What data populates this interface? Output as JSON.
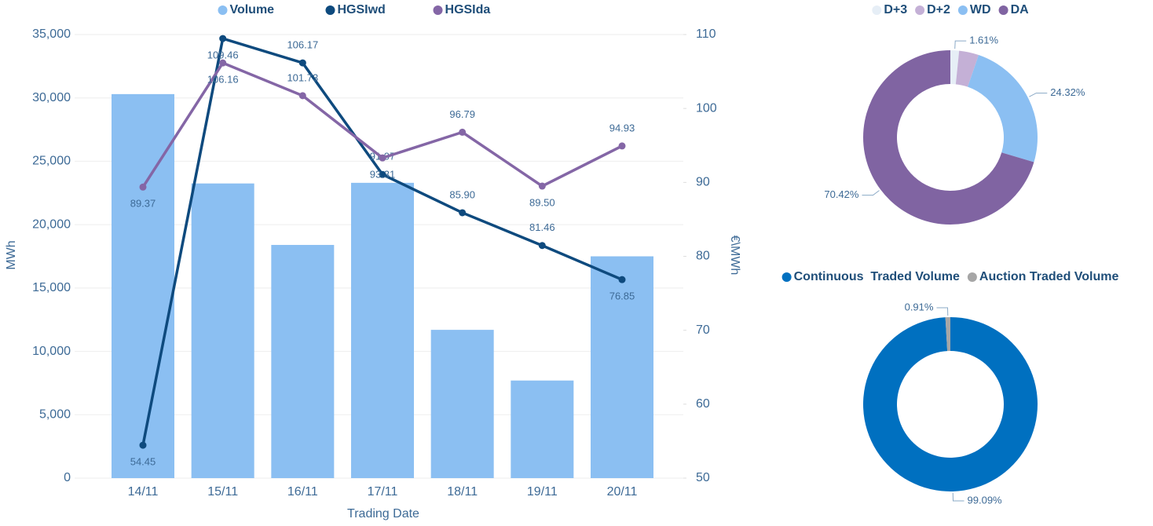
{
  "chart_data": [
    {
      "type": "combo",
      "categories": [
        "14/11",
        "15/11",
        "16/11",
        "17/11",
        "18/11",
        "19/11",
        "20/11"
      ],
      "series": [
        {
          "name": "Volume",
          "color": "#8bbff2",
          "kind": "bar",
          "values": [
            30300,
            23250,
            18400,
            23300,
            11700,
            7700,
            17500
          ]
        },
        {
          "name": "HGSIwd",
          "color": "#0e4a7e",
          "kind": "line",
          "axis": "y2",
          "values": [
            54.45,
            109.46,
            106.17,
            91.07,
            85.9,
            81.46,
            76.85
          ],
          "value_labels": [
            "54.45",
            "109.46",
            "106.17",
            "91.07",
            "85.90",
            "81.46",
            "76.85"
          ]
        },
        {
          "name": "HGSIda",
          "color": "#8466a6",
          "kind": "line",
          "axis": "y2",
          "values": [
            89.37,
            106.16,
            101.73,
            93.31,
            96.79,
            89.5,
            94.93
          ],
          "value_labels": [
            "89.37",
            "106.16",
            "101.73",
            "93.31",
            "96.79",
            "89.50",
            "94.93"
          ]
        }
      ],
      "ylim": [
        0,
        35000
      ],
      "yticks": [
        0,
        {
          "value": 5000,
          "label": "5,000"
        },
        {
          "value": 10000,
          "label": "10,000"
        },
        {
          "value": 15000,
          "label": "15,000"
        },
        {
          "value": 20000,
          "label": "20,000"
        },
        {
          "value": 25000,
          "label": "25,000"
        },
        {
          "value": 30000,
          "label": "30,000"
        },
        {
          "value": 35000,
          "label": "35,000"
        }
      ],
      "y2lim": [
        50,
        110
      ],
      "y2ticks": [
        50,
        60,
        70,
        80,
        90,
        100,
        110
      ],
      "y_label": "MWh",
      "y2_label": "€\\MWh",
      "x_label": "Trading Date",
      "grid": true,
      "legend": "top"
    },
    {
      "type": "donut",
      "categories": [
        "D+3",
        "D+2",
        "WD",
        "DA"
      ],
      "values": [
        1.61,
        3.65,
        24.32,
        70.42
      ],
      "value_labels": [
        "1.61%",
        null,
        "24.32%",
        "70.42%"
      ],
      "colors": [
        "#e6eef6",
        "#c4b0d6",
        "#8bbff2",
        "#8064a2"
      ],
      "legend": "top"
    },
    {
      "type": "donut",
      "categories": [
        "Continuous  Traded Volume",
        "Auction Traded Volume"
      ],
      "values": [
        99.09,
        0.91
      ],
      "value_labels": [
        "99.09%",
        "0.91%"
      ],
      "colors": [
        "#0070c0",
        "#a6a6a6"
      ],
      "legend": "top"
    }
  ]
}
